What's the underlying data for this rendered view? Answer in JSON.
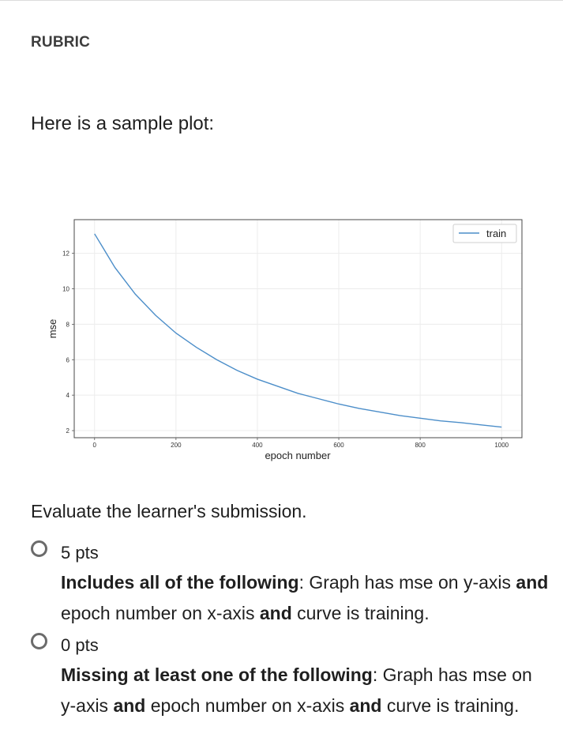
{
  "rubric": {
    "heading": "RUBRIC"
  },
  "intro": "Here is a sample plot:",
  "chart_data": {
    "type": "line",
    "xlabel": "epoch number",
    "ylabel": "mse",
    "xlim": [
      -50,
      1050
    ],
    "ylim": [
      1.6,
      13.9
    ],
    "xticks": [
      0,
      200,
      400,
      600,
      800,
      1000
    ],
    "yticks": [
      2,
      4,
      6,
      8,
      10,
      12
    ],
    "grid": true,
    "legend_position": "top-right",
    "series": [
      {
        "name": "train",
        "color": "#4c8ec9",
        "x": [
          0,
          50,
          100,
          150,
          200,
          250,
          300,
          350,
          400,
          450,
          500,
          550,
          600,
          650,
          700,
          750,
          800,
          850,
          900,
          950,
          1000
        ],
        "y": [
          13.1,
          11.2,
          9.7,
          8.5,
          7.5,
          6.7,
          6.0,
          5.4,
          4.9,
          4.5,
          4.1,
          3.8,
          3.5,
          3.25,
          3.05,
          2.85,
          2.7,
          2.55,
          2.45,
          2.32,
          2.2
        ]
      }
    ]
  },
  "evaluate": "Evaluate the learner's submission.",
  "options": [
    {
      "points": "5 pts",
      "lead": "Includes all of the following",
      "colon": ": Graph has mse on y-axis ",
      "and1": "and",
      "mid": " epoch number on x-axis ",
      "and2": "and",
      "tail": " curve is training."
    },
    {
      "points": "0 pts",
      "lead": "Missing at least one of the following",
      "colon": ": Graph has mse on y-axis ",
      "and1": "and",
      "mid": " epoch number on x-axis ",
      "and2": "and",
      "tail": " curve is training."
    }
  ]
}
